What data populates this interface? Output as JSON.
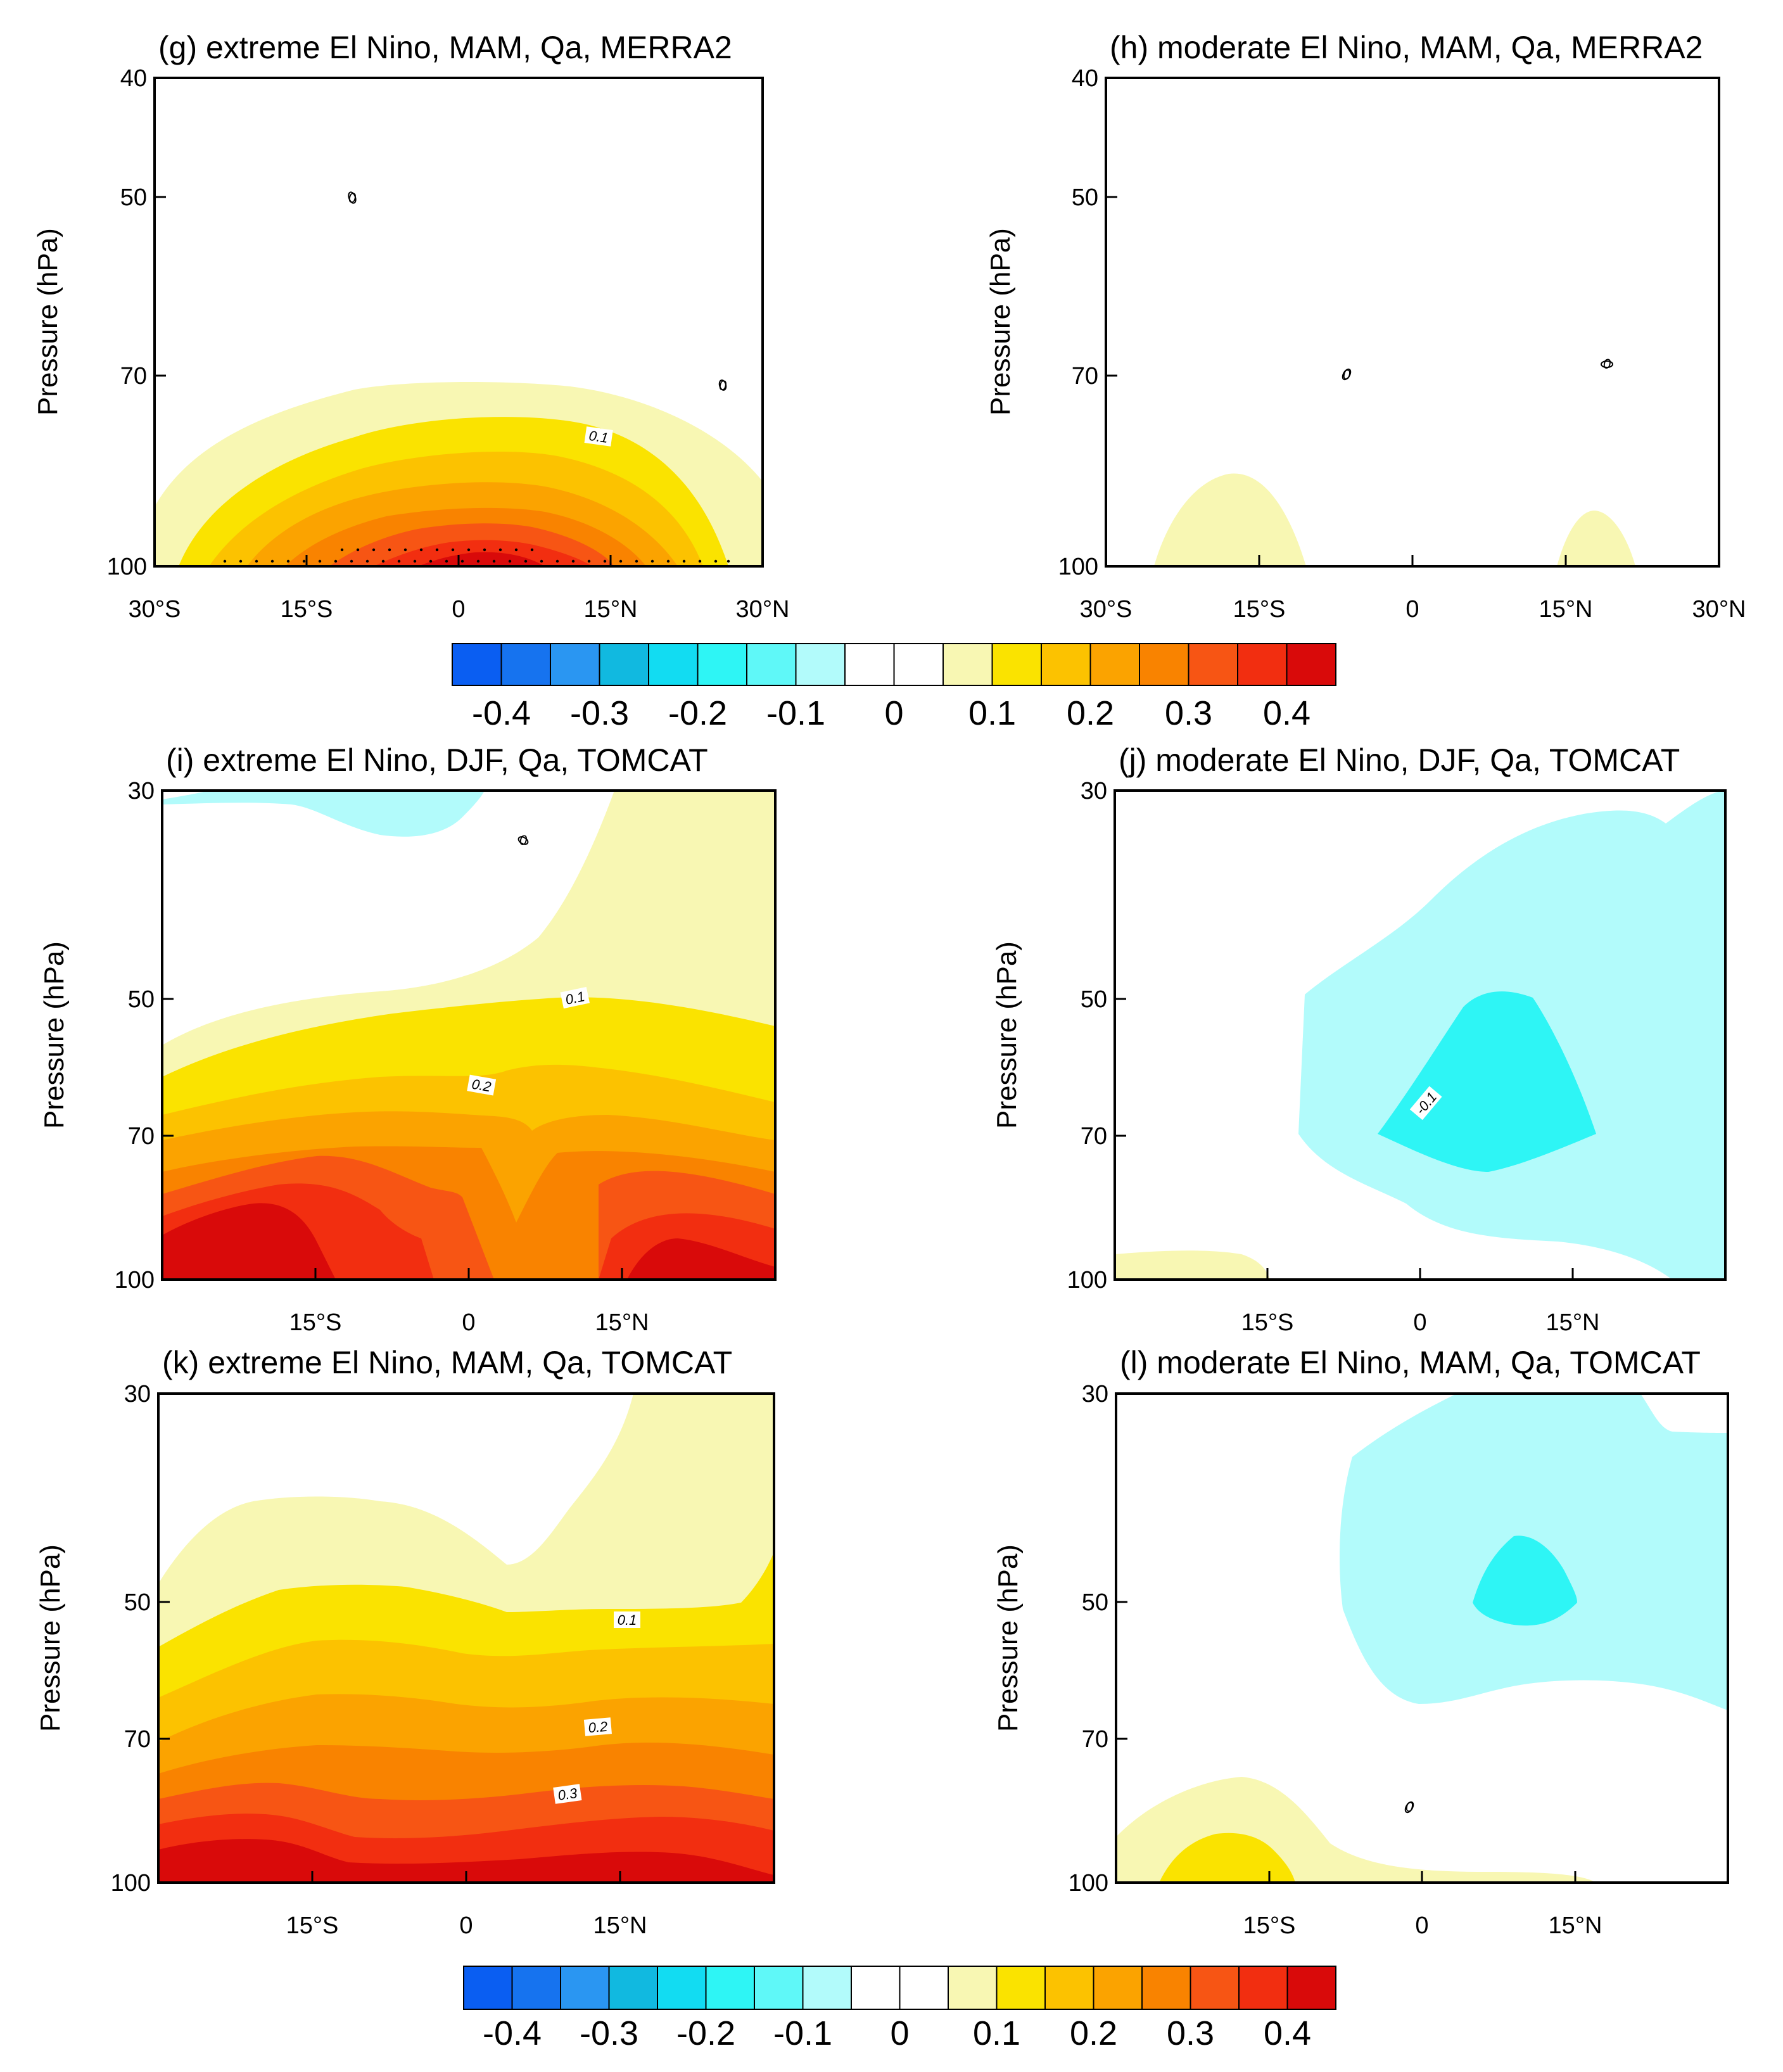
{
  "chart_data": {
    "colorbar": {
      "levels": [
        "-0.4",
        "-0.3",
        "-0.2",
        "-0.1",
        "0",
        "0.1",
        "0.2",
        "0.3",
        "0.4"
      ],
      "colors": [
        "#0a5ef2",
        "#1673ef",
        "#2a96f2",
        "#11b9e0",
        "#12dcf2",
        "#2ef5f5",
        "#5ff8f8",
        "#b2fbfb",
        "#ffffff",
        "#ffffff",
        "#f8f7b3",
        "#fae300",
        "#fcc200",
        "#fba300",
        "#f98300",
        "#f75514",
        "#f22e10",
        "#d90a0a"
      ]
    },
    "panels": [
      {
        "id": "g",
        "type": "contour",
        "title": "(g) extreme El Nino, MAM, Qa, MERRA2",
        "ylabel": "Pressure (hPa)",
        "xlim": [
          -30,
          30
        ],
        "ylim": [
          100,
          40
        ],
        "xticks": [
          -30,
          -15,
          0,
          15,
          30
        ],
        "xtick_labels": [
          "30°S",
          "15°S",
          "0",
          "15°N",
          "30°N"
        ],
        "yticks": [
          40,
          50,
          70,
          100
        ],
        "ytick_labels": [
          "40",
          "50",
          "70",
          "100"
        ],
        "contour_labels": [
          "0",
          "0",
          "0.1"
        ],
        "stippling": true
      },
      {
        "id": "h",
        "type": "contour",
        "title": "(h) moderate El Nino, MAM, Qa, MERRA2",
        "ylabel": "Pressure (hPa)",
        "xlim": [
          -30,
          30
        ],
        "ylim": [
          100,
          40
        ],
        "xticks": [
          -30,
          -15,
          0,
          15,
          30
        ],
        "xtick_labels": [
          "30°S",
          "15°S",
          "0",
          "15°N",
          "30°N"
        ],
        "yticks": [
          40,
          50,
          70,
          100
        ],
        "ytick_labels": [
          "40",
          "50",
          "70",
          "100"
        ],
        "contour_labels": [
          "0",
          "0"
        ]
      },
      {
        "id": "i",
        "type": "contour",
        "title": "(i) extreme El Nino, DJF, Qa, TOMCAT",
        "ylabel": "Pressure (hPa)",
        "xlim": [
          -30,
          30
        ],
        "ylim": [
          100,
          30
        ],
        "xticks": [
          -15,
          0,
          15
        ],
        "xtick_labels": [
          "15°S",
          "0",
          "15°N"
        ],
        "yticks": [
          30,
          50,
          70,
          100
        ],
        "ytick_labels": [
          "30",
          "50",
          "70",
          "100"
        ],
        "contour_labels": [
          "0",
          "0.1",
          "0.2"
        ]
      },
      {
        "id": "j",
        "type": "contour",
        "title": "(j) moderate El Nino, DJF, Qa, TOMCAT",
        "ylabel": "Pressure (hPa)",
        "xlim": [
          -30,
          30
        ],
        "ylim": [
          100,
          30
        ],
        "xticks": [
          -15,
          0,
          15
        ],
        "xtick_labels": [
          "15°S",
          "0",
          "15°N"
        ],
        "yticks": [
          30,
          50,
          70,
          100
        ],
        "ytick_labels": [
          "30",
          "50",
          "70",
          "100"
        ],
        "contour_labels": [
          "-0.1"
        ]
      },
      {
        "id": "k",
        "type": "contour",
        "title": "(k) extreme El Nino, MAM, Qa, TOMCAT",
        "ylabel": "Pressure (hPa)",
        "xlim": [
          -30,
          30
        ],
        "ylim": [
          100,
          30
        ],
        "xticks": [
          -15,
          0,
          15
        ],
        "xtick_labels": [
          "15°S",
          "0",
          "15°N"
        ],
        "yticks": [
          30,
          50,
          70,
          100
        ],
        "ytick_labels": [
          "30",
          "50",
          "70",
          "100"
        ],
        "contour_labels": [
          "0.1",
          "0.2",
          "0.3"
        ]
      },
      {
        "id": "l",
        "type": "contour",
        "title": "(l) moderate El Nino, MAM, Qa, TOMCAT",
        "ylabel": "Pressure (hPa)",
        "xlim": [
          -30,
          30
        ],
        "ylim": [
          100,
          30
        ],
        "xticks": [
          -15,
          0,
          15
        ],
        "xtick_labels": [
          "15°S",
          "0",
          "15°N"
        ],
        "yticks": [
          30,
          50,
          70,
          100
        ],
        "ytick_labels": [
          "30",
          "50",
          "70",
          "100"
        ],
        "contour_labels": [
          "0"
        ]
      }
    ]
  }
}
